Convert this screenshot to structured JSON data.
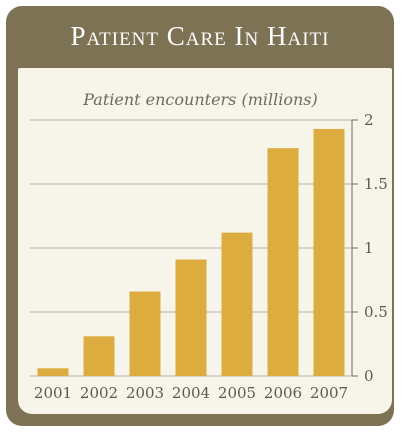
{
  "chart_data": {
    "type": "bar",
    "title": "Patient Care In Haiti",
    "ylabel": "Patient encounters (millions)",
    "xlabel": "",
    "categories": [
      "2001",
      "2002",
      "2003",
      "2004",
      "2005",
      "2006",
      "2007"
    ],
    "values": [
      0.06,
      0.31,
      0.66,
      0.91,
      1.12,
      1.78,
      1.93
    ],
    "ylim": [
      0,
      2
    ],
    "yticks": [
      0,
      0.5,
      1,
      1.5,
      2
    ],
    "ytick_labels": [
      "0",
      "0.5",
      "1",
      "1.5",
      "2"
    ],
    "grid": true,
    "axis_side": "right",
    "colors": {
      "bar": "#dcad3e",
      "frame": "#7d7354",
      "panel": "#f7f4ea",
      "grid": "#b7b1a0"
    }
  }
}
